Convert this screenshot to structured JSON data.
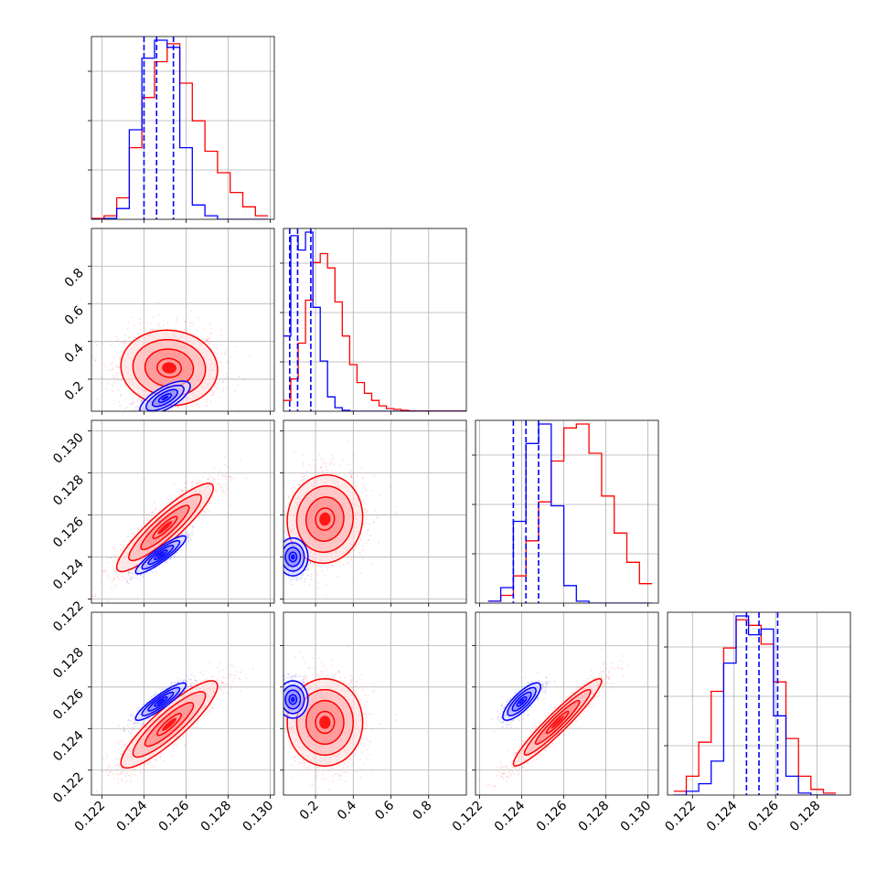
{
  "figure": {
    "type": "corner"
  },
  "colors": {
    "red": "#ff0000",
    "blue": "#0000ff",
    "grid": "#b0b0b0",
    "frame": "#000000"
  },
  "params": [
    {
      "range": [
        0.1215,
        0.1302
      ],
      "ticks": [
        "0.122",
        "0.124",
        "0.126",
        "0.128",
        "0.130"
      ],
      "tick_values": [
        0.122,
        0.124,
        0.126,
        0.128,
        0.13
      ]
    },
    {
      "range": [
        0.03,
        1.0
      ],
      "ticks": [
        "0.2",
        "0.4",
        "0.6",
        "0.8"
      ],
      "tick_values": [
        0.2,
        0.4,
        0.6,
        0.8
      ]
    },
    {
      "range": [
        0.1218,
        0.1305
      ],
      "ticks": [
        "0.122",
        "0.124",
        "0.126",
        "0.128",
        "0.130"
      ],
      "tick_values": [
        0.122,
        0.124,
        0.126,
        0.128,
        0.13
      ]
    },
    {
      "range": [
        0.1208,
        0.1296
      ],
      "ticks": [
        "0.122",
        "0.124",
        "0.126",
        "0.128"
      ],
      "tick_values": [
        0.122,
        0.124,
        0.126,
        0.128
      ]
    }
  ],
  "chart_data": [
    {
      "type": "histogram",
      "panel": "0-0",
      "bins": [
        0.1215,
        0.1221,
        0.1227,
        0.1233,
        0.1239,
        0.1245,
        0.1251,
        0.1257,
        0.1263,
        0.1269,
        0.1275,
        0.1281,
        0.1287,
        0.1293,
        0.1299
      ],
      "series": [
        {
          "color": "red",
          "counts": [
            0.5,
            2,
            12,
            40,
            68,
            88,
            98,
            76,
            55,
            38,
            26,
            15,
            7,
            2
          ]
        },
        {
          "color": "blue",
          "counts": [
            0,
            0.5,
            6,
            50,
            90,
            100,
            96,
            40,
            8,
            2,
            0,
            0,
            0,
            0
          ]
        }
      ],
      "quantiles": [
        0.124,
        0.1246,
        0.1254
      ]
    },
    {
      "type": "histogram",
      "panel": "1-1",
      "bins": [
        0.03,
        0.069,
        0.108,
        0.147,
        0.186,
        0.225,
        0.264,
        0.303,
        0.342,
        0.381,
        0.42,
        0.459,
        0.498,
        0.537,
        0.576,
        0.615,
        0.654,
        0.693,
        0.732,
        1.0
      ],
      "series": [
        {
          "color": "red",
          "counts": [
            6,
            18,
            38,
            62,
            83,
            88,
            80,
            61,
            42,
            26,
            16,
            10,
            6,
            3,
            1.5,
            1,
            0.5,
            0.2,
            0.1
          ]
        },
        {
          "color": "blue",
          "counts": [
            42,
            98,
            90,
            100,
            58,
            28,
            8,
            2,
            0.5,
            0,
            0,
            0,
            0,
            0,
            0,
            0,
            0,
            0,
            0
          ]
        }
      ],
      "quantiles": [
        0.063,
        0.105,
        0.175
      ]
    },
    {
      "type": "histogram",
      "panel": "2-2",
      "bins": [
        0.1224,
        0.123,
        0.1236,
        0.1242,
        0.1248,
        0.1254,
        0.126,
        0.1266,
        0.1272,
        0.1278,
        0.1284,
        0.129,
        0.1296,
        0.1302
      ],
      "series": [
        {
          "color": "red",
          "counts": [
            1,
            4,
            14,
            32,
            52,
            73,
            90,
            92,
            77,
            55,
            36,
            21,
            10
          ]
        },
        {
          "color": "blue",
          "counts": [
            1,
            8,
            42,
            82,
            92,
            50,
            9,
            1,
            0,
            0,
            0,
            0,
            0
          ]
        }
      ],
      "quantiles": [
        0.1236,
        0.1242,
        0.1248
      ]
    },
    {
      "type": "histogram",
      "panel": "3-3",
      "bins": [
        0.1211,
        0.1217,
        0.1223,
        0.1229,
        0.1235,
        0.1241,
        0.1247,
        0.1253,
        0.1259,
        0.1265,
        0.1271,
        0.1277,
        0.1283,
        0.1289
      ],
      "series": [
        {
          "color": "red",
          "counts": [
            2,
            10,
            28,
            55,
            78,
            93,
            90,
            80,
            60,
            30,
            10,
            3,
            1
          ]
        },
        {
          "color": "blue",
          "counts": [
            0,
            2,
            6,
            18,
            70,
            95,
            85,
            88,
            42,
            10,
            1,
            0,
            0
          ]
        }
      ],
      "quantiles": [
        0.1246,
        0.1252,
        0.1261
      ]
    },
    {
      "type": "scatter-contour",
      "panel": "1-0",
      "series": [
        {
          "color": "red",
          "mean": [
            0.1252,
            0.26
          ],
          "sd": [
            0.00115,
            0.1
          ],
          "rho": -0.05
        },
        {
          "color": "blue",
          "mean": [
            0.125,
            0.1
          ],
          "sd": [
            0.0006,
            0.045
          ],
          "rho": 0.7
        }
      ]
    },
    {
      "type": "scatter-contour",
      "panel": "2-0",
      "series": [
        {
          "color": "red",
          "mean": [
            0.125,
            0.1254
          ],
          "sd": [
            0.00115,
            0.00105
          ],
          "rho": 0.9
        },
        {
          "color": "blue",
          "mean": [
            0.1248,
            0.1241
          ],
          "sd": [
            0.0006,
            0.00045
          ],
          "rho": 0.9
        }
      ]
    },
    {
      "type": "scatter-contour",
      "panel": "2-1",
      "series": [
        {
          "color": "red",
          "mean": [
            0.25,
            0.1258
          ],
          "sd": [
            0.1,
            0.00105
          ],
          "rho": 0.05
        },
        {
          "color": "blue",
          "mean": [
            0.08,
            0.124
          ],
          "sd": [
            0.04,
            0.00045
          ],
          "rho": 0.0
        }
      ]
    },
    {
      "type": "scatter-contour",
      "panel": "3-0",
      "series": [
        {
          "color": "red",
          "mean": [
            0.1252,
            0.1242
          ],
          "sd": [
            0.00115,
            0.00105
          ],
          "rho": 0.88
        },
        {
          "color": "blue",
          "mean": [
            0.1248,
            0.1253
          ],
          "sd": [
            0.0006,
            0.00045
          ],
          "rho": 0.9
        }
      ]
    },
    {
      "type": "scatter-contour",
      "panel": "3-1",
      "series": [
        {
          "color": "red",
          "mean": [
            0.25,
            0.1243
          ],
          "sd": [
            0.1,
            0.00105
          ],
          "rho": 0.0
        },
        {
          "color": "blue",
          "mean": [
            0.08,
            0.1254
          ],
          "sd": [
            0.04,
            0.00045
          ],
          "rho": 0.0
        }
      ]
    },
    {
      "type": "scatter-contour",
      "panel": "3-2",
      "series": [
        {
          "color": "red",
          "mean": [
            0.1257,
            0.1243
          ],
          "sd": [
            0.00105,
            0.00105
          ],
          "rho": 0.95
        },
        {
          "color": "blue",
          "mean": [
            0.124,
            0.1253
          ],
          "sd": [
            0.00045,
            0.00045
          ],
          "rho": 0.8
        }
      ]
    }
  ]
}
